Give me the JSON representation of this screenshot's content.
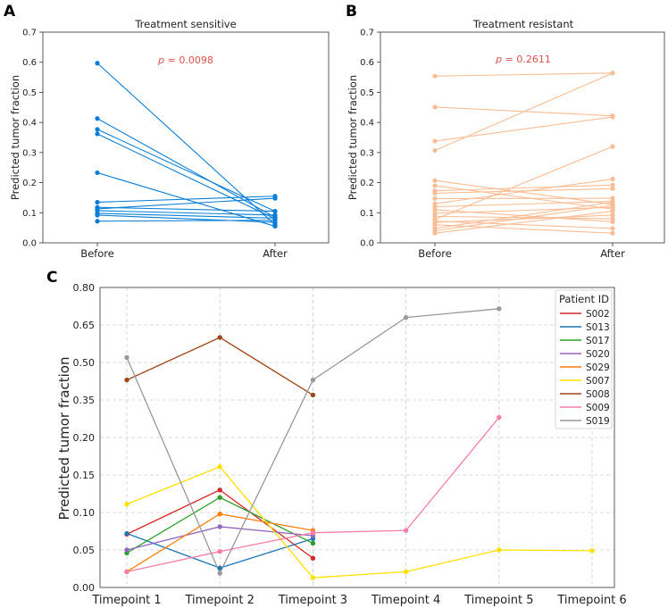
{
  "chart_data": [
    {
      "panel": "A",
      "type": "line",
      "title": "Treatment sensitive",
      "ylabel": "Predicted tumor fraction",
      "categories": [
        "Before",
        "After"
      ],
      "ylim": [
        0,
        0.7
      ],
      "yticks": [
        "0.0",
        "0.1",
        "0.2",
        "0.3",
        "0.4",
        "0.5",
        "0.6",
        "0.7"
      ],
      "annotation": "p = 0.0098",
      "color": "#0a7ed6",
      "pairs": [
        [
          0.597,
          0.06
        ],
        [
          0.413,
          0.085
        ],
        [
          0.377,
          0.105
        ],
        [
          0.362,
          0.08
        ],
        [
          0.233,
          0.055
        ],
        [
          0.135,
          0.155
        ],
        [
          0.118,
          0.105
        ],
        [
          0.113,
          0.148
        ],
        [
          0.107,
          0.092
        ],
        [
          0.098,
          0.082
        ],
        [
          0.092,
          0.068
        ],
        [
          0.072,
          0.075
        ]
      ]
    },
    {
      "panel": "B",
      "type": "line",
      "title": "Treatment resistant",
      "ylabel": "Predicted tumor fraction",
      "categories": [
        "Before",
        "After"
      ],
      "ylim": [
        0,
        0.7
      ],
      "yticks": [
        "0.0",
        "0.1",
        "0.2",
        "0.3",
        "0.4",
        "0.5",
        "0.6",
        "0.7"
      ],
      "annotation": "p = 0.2611",
      "color": "#f9bd95",
      "pairs": [
        [
          0.554,
          0.564
        ],
        [
          0.451,
          0.422
        ],
        [
          0.338,
          0.418
        ],
        [
          0.307,
          0.564
        ],
        [
          0.207,
          0.128
        ],
        [
          0.19,
          0.112
        ],
        [
          0.173,
          0.192
        ],
        [
          0.165,
          0.18
        ],
        [
          0.147,
          0.148
        ],
        [
          0.13,
          0.212
        ],
        [
          0.12,
          0.138
        ],
        [
          0.11,
          0.07
        ],
        [
          0.098,
          0.118
        ],
        [
          0.088,
          0.08
        ],
        [
          0.078,
          0.32
        ],
        [
          0.072,
          0.048
        ],
        [
          0.068,
          0.092
        ],
        [
          0.06,
          0.032
        ],
        [
          0.048,
          0.135
        ],
        [
          0.04,
          0.125
        ],
        [
          0.032,
          0.105
        ]
      ]
    },
    {
      "panel": "C",
      "type": "line",
      "ylabel": "Predicted tumor fraction",
      "categories": [
        "Timepoint 1",
        "Timepoint 2",
        "Timepoint 3",
        "Timepoint 4",
        "Timepoint 5",
        "Timepoint 6"
      ],
      "yticks": [
        "0.00",
        "0.05",
        "0.10",
        "0.15",
        "0.20",
        "0.35",
        "0.50",
        "0.65",
        "0.80"
      ],
      "legend_title": "Patient ID",
      "legend_loc": "top-right",
      "series": [
        {
          "name": "S002",
          "color": "#d62728",
          "values": [
            0.071,
            0.13,
            0.039,
            null,
            null,
            null
          ]
        },
        {
          "name": "S013",
          "color": "#1f77b4",
          "values": [
            0.072,
            0.026,
            0.065,
            null,
            null,
            null
          ]
        },
        {
          "name": "S017",
          "color": "#2ca02c",
          "values": [
            0.046,
            0.12,
            0.059,
            null,
            null,
            null
          ]
        },
        {
          "name": "S020",
          "color": "#9467bd",
          "values": [
            0.05,
            0.081,
            0.069,
            null,
            null,
            null
          ]
        },
        {
          "name": "S029",
          "color": "#ff7f0e",
          "values": [
            0.021,
            0.098,
            0.076,
            null,
            null,
            null
          ]
        },
        {
          "name": "S007",
          "color": "#ffe100",
          "values": [
            0.111,
            0.161,
            0.013,
            0.021,
            0.05,
            0.049
          ]
        },
        {
          "name": "S008",
          "color": "#a0451a",
          "values": [
            0.43,
            0.6,
            0.37,
            null,
            null,
            null
          ]
        },
        {
          "name": "S009",
          "color": "#f57fa7",
          "values": [
            0.021,
            0.048,
            0.073,
            0.076,
            0.28,
            null
          ]
        },
        {
          "name": "S019",
          "color": "#999999",
          "values": [
            0.52,
            0.019,
            0.43,
            0.68,
            0.715,
            null
          ]
        }
      ]
    }
  ]
}
